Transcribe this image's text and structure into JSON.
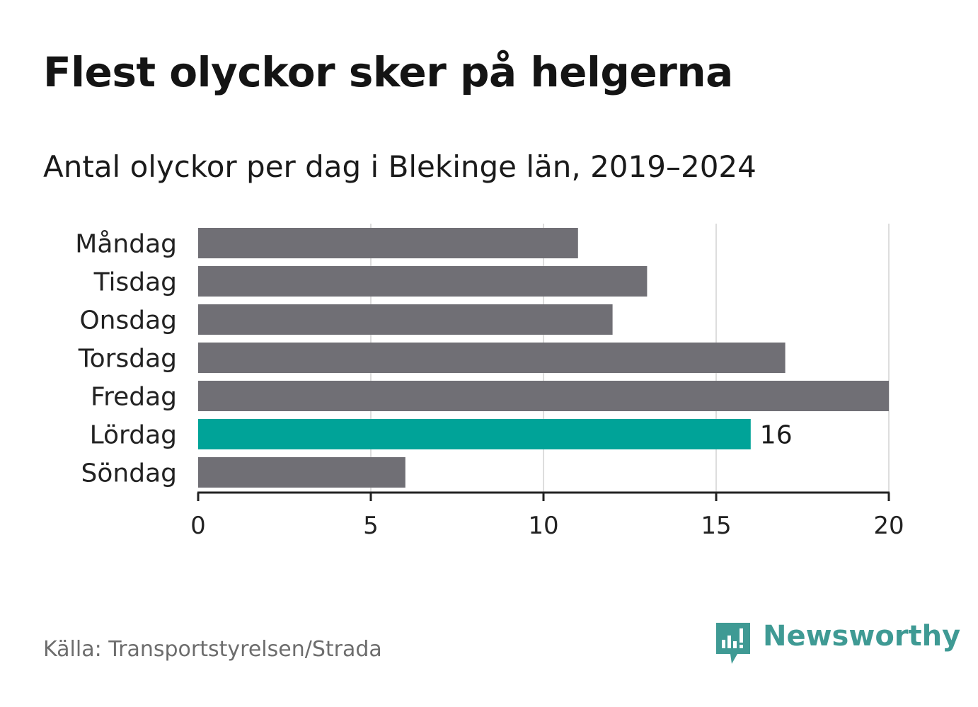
{
  "header": {
    "title": "Flest olyckor sker på helgerna",
    "subtitle": "Antal olyckor per dag i Blekinge län, 2019–2024"
  },
  "footer": {
    "source": "Källa: Transportstyrelsen/Strada",
    "brand": "Newsworthy"
  },
  "colors": {
    "bar_default": "#706f75",
    "bar_highlight": "#00a398",
    "grid": "#dddddd",
    "axis": "#222222",
    "brand": "#3f9a94"
  },
  "chart_data": {
    "type": "bar",
    "orientation": "horizontal",
    "categories": [
      "Måndag",
      "Tisdag",
      "Onsdag",
      "Torsdag",
      "Fredag",
      "Lördag",
      "Söndag"
    ],
    "values": [
      11,
      13,
      12,
      17,
      20,
      16,
      6
    ],
    "highlight_index": 5,
    "data_labels": [
      {
        "index": 5,
        "text": "16"
      }
    ],
    "xlim": [
      0,
      20
    ],
    "xticks": [
      0,
      5,
      10,
      15,
      20
    ],
    "xtick_labels": [
      "0",
      "5",
      "10",
      "15",
      "20"
    ],
    "grid": "vertical",
    "xlabel": "",
    "ylabel": ""
  }
}
